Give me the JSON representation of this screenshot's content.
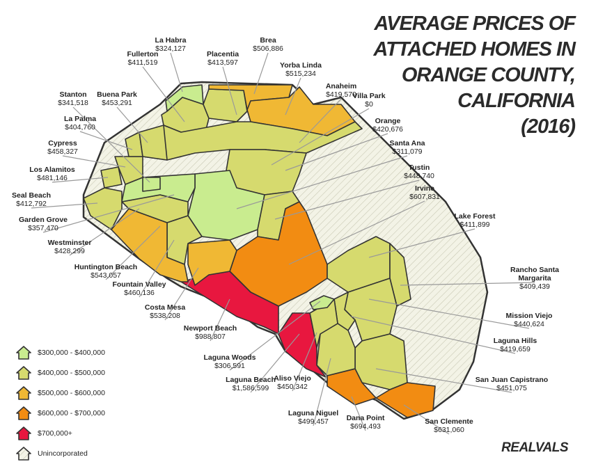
{
  "title_lines": [
    "AVERAGE PRICES OF",
    "ATTACHED HOMES IN",
    "ORANGE COUNTY,",
    "CALIFORNIA",
    "(2016)"
  ],
  "cities": [
    {
      "name": "La Habra",
      "price": "$324,127",
      "color": "#c9ec8f"
    },
    {
      "name": "Fullerton",
      "price": "$411,519",
      "color": "#d6da6e"
    },
    {
      "name": "Placentia",
      "price": "$413,597",
      "color": "#d6da6e"
    },
    {
      "name": "Brea",
      "price": "$506,886",
      "color": "#f0b834"
    },
    {
      "name": "Yorba Linda",
      "price": "$515,234",
      "color": "#f0b834"
    },
    {
      "name": "Anaheim",
      "price": "$419,570",
      "color": "#d6da6e"
    },
    {
      "name": "Villa Park",
      "price": "$0",
      "color": "#ffffff"
    },
    {
      "name": "Orange",
      "price": "$420,676",
      "color": "#d6da6e"
    },
    {
      "name": "Santa Ana",
      "price": "$311,079",
      "color": "#c9ec8f"
    },
    {
      "name": "Tustin",
      "price": "$448,740",
      "color": "#d6da6e"
    },
    {
      "name": "Irvine",
      "price": "$607,831",
      "color": "#f28c12"
    },
    {
      "name": "Lake Forest",
      "price": "$411,899",
      "color": "#d6da6e"
    },
    {
      "name": "Rancho Santa Margarita",
      "price": "$409,439",
      "color": "#d6da6e"
    },
    {
      "name": "Mission Viejo",
      "price": "$440,624",
      "color": "#d6da6e"
    },
    {
      "name": "Laguna Hills",
      "price": "$419,659",
      "color": "#d6da6e"
    },
    {
      "name": "San Juan Capistrano",
      "price": "$451,075",
      "color": "#d6da6e"
    },
    {
      "name": "San Clemente",
      "price": "$631,060",
      "color": "#f28c12"
    },
    {
      "name": "Dana Point",
      "price": "$694,493",
      "color": "#f28c12"
    },
    {
      "name": "Laguna Niguel",
      "price": "$499,457",
      "color": "#d6da6e"
    },
    {
      "name": "Aliso Viejo",
      "price": "$450,342",
      "color": "#d6da6e"
    },
    {
      "name": "Laguna Beach",
      "price": "$1,586,599",
      "color": "#e8173f"
    },
    {
      "name": "Laguna Woods",
      "price": "$306,591",
      "color": "#c9ec8f"
    },
    {
      "name": "Newport Beach",
      "price": "$988,807",
      "color": "#e8173f"
    },
    {
      "name": "Costa Mesa",
      "price": "$538,208",
      "color": "#f0b834"
    },
    {
      "name": "Fountain Valley",
      "price": "$460,136",
      "color": "#d6da6e"
    },
    {
      "name": "Huntington Beach",
      "price": "$543,057",
      "color": "#f0b834"
    },
    {
      "name": "Westminster",
      "price": "$428,299",
      "color": "#d6da6e"
    },
    {
      "name": "Garden Grove",
      "price": "$357,470",
      "color": "#c9ec8f"
    },
    {
      "name": "Seal Beach",
      "price": "$412,792",
      "color": "#d6da6e"
    },
    {
      "name": "Los Alamitos",
      "price": "$481,146",
      "color": "#d6da6e"
    },
    {
      "name": "Cypress",
      "price": "$458,327",
      "color": "#d6da6e"
    },
    {
      "name": "La Palma",
      "price": "$404,760",
      "color": "#d6da6e"
    },
    {
      "name": "Stanton",
      "price": "$341,518",
      "color": "#c9ec8f"
    },
    {
      "name": "Buena Park",
      "price": "$453,291",
      "color": "#d6da6e"
    }
  ],
  "legend": [
    {
      "label": "$300,000 - $400,000",
      "color": "#c9ec8f"
    },
    {
      "label": "$400,000 - $500,000",
      "color": "#d6da6e"
    },
    {
      "label": "$500,000 - $600,000",
      "color": "#f0b834"
    },
    {
      "label": "$600,000 - $700,000",
      "color": "#f28c12"
    },
    {
      "label": "$700,000+",
      "color": "#e8173f"
    },
    {
      "label": "Unincorporated",
      "color": "#f3f3e6",
      "hatched": true
    }
  ],
  "brand": "REALVALS"
}
